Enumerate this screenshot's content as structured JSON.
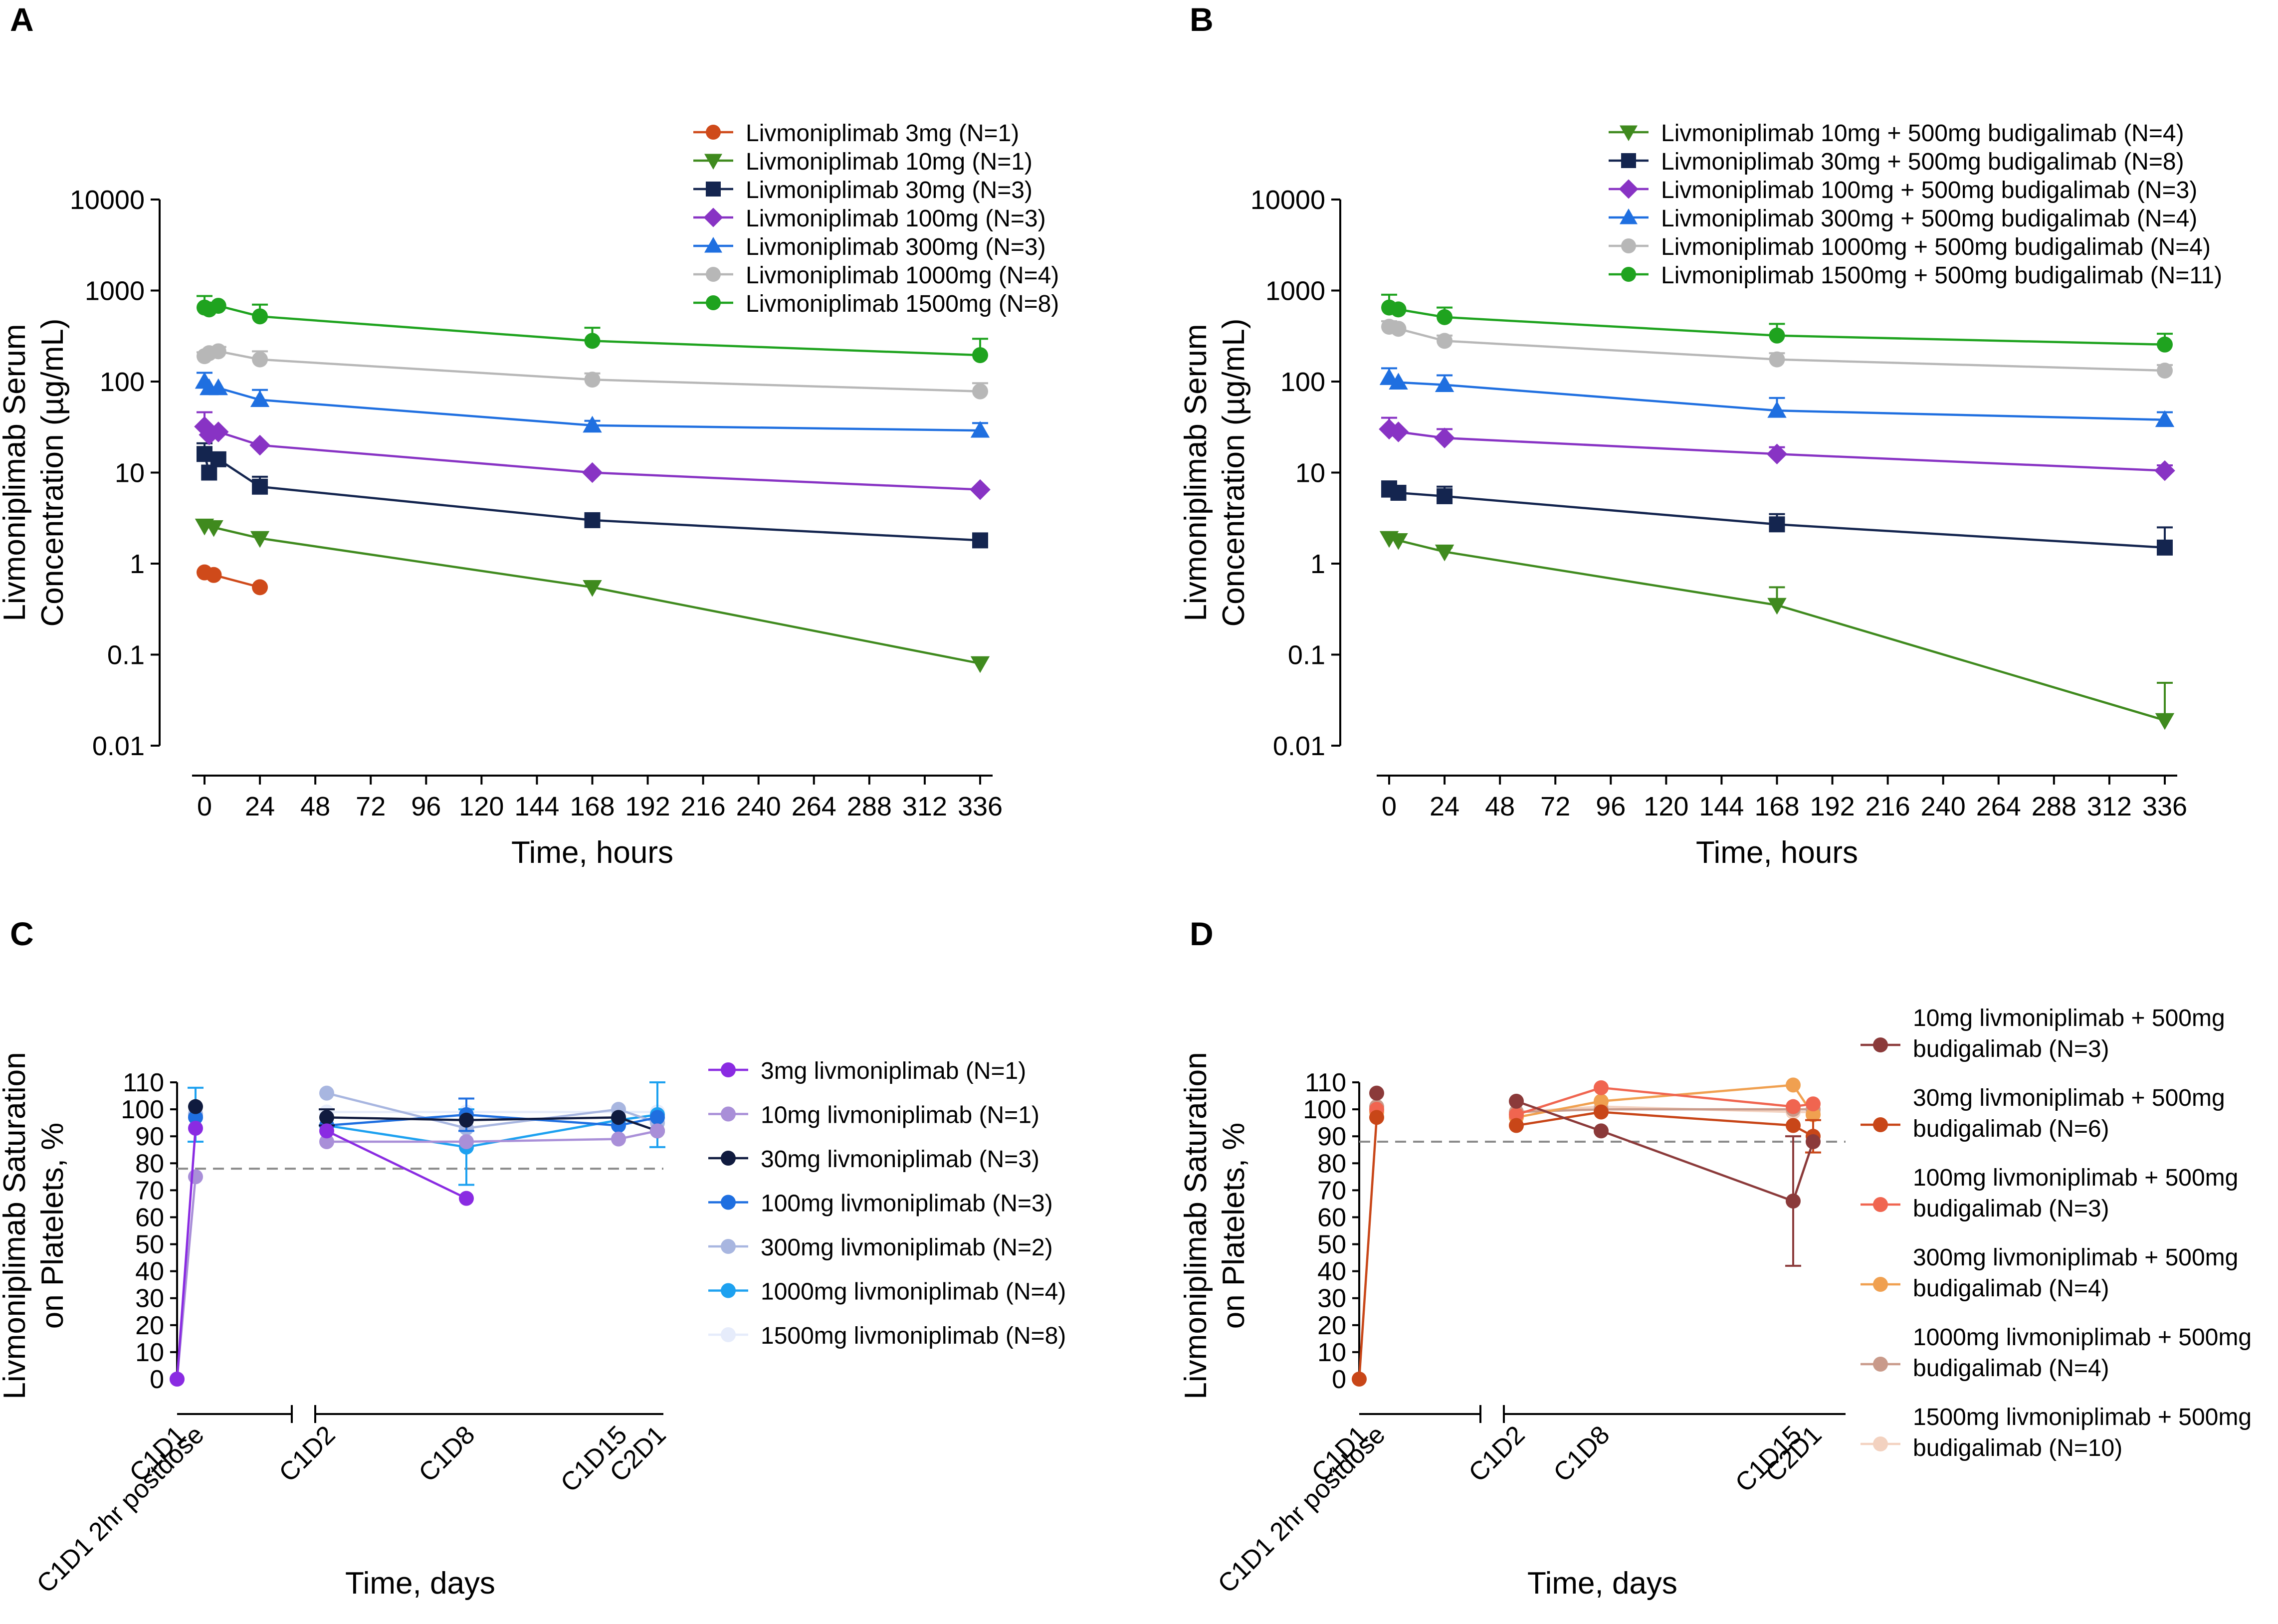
{
  "chart_data": [
    {
      "panel": "A",
      "type": "line",
      "yscale": "log",
      "ylabel": [
        "Livmoniplimab Serum",
        "Concentration (µg/mL)"
      ],
      "xlabel": "Time, hours",
      "xticks": [
        0,
        24,
        48,
        72,
        96,
        120,
        144,
        168,
        192,
        216,
        240,
        264,
        288,
        312,
        336
      ],
      "yticks": [
        0.01,
        0.1,
        1,
        10,
        100,
        1000,
        10000
      ],
      "ytick_labels": [
        "0.01",
        "0.1",
        "1",
        "10",
        "100",
        "1000",
        "10000"
      ],
      "ylim": [
        0.01,
        10000
      ],
      "xlim": [
        0,
        336
      ],
      "series": [
        {
          "name": "Livmoniplimab 3mg (N=1)",
          "color": "#cf4a1a",
          "marker": "circle",
          "x": [
            0,
            4,
            24
          ],
          "y": [
            0.8,
            0.75,
            0.55
          ],
          "err": [
            0,
            0,
            0
          ]
        },
        {
          "name": "Livmoniplimab 10mg (N=1)",
          "color": "#3f8a1e",
          "marker": "triangle-down",
          "x": [
            0,
            4,
            24,
            168,
            336
          ],
          "y": [
            2.6,
            2.5,
            1.9,
            0.55,
            0.08
          ],
          "err": [
            0,
            0,
            0,
            0,
            0
          ]
        },
        {
          "name": "Livmoniplimab 30mg (N=3)",
          "color": "#14254f",
          "marker": "square",
          "x": [
            0,
            2,
            6,
            24,
            168,
            336
          ],
          "y": [
            16,
            10,
            14,
            7,
            3,
            1.8
          ],
          "err": [
            5,
            0,
            0,
            2,
            0.5,
            0
          ]
        },
        {
          "name": "Livmoniplimab 100mg (N=3)",
          "color": "#8833c4",
          "marker": "diamond",
          "x": [
            0,
            2,
            6,
            24,
            168,
            336
          ],
          "y": [
            32,
            26,
            28,
            20,
            10,
            6.5
          ],
          "err": [
            14,
            0,
            0,
            0,
            0,
            0
          ]
        },
        {
          "name": "Livmoniplimab 300mg (N=3)",
          "color": "#1f6fe0",
          "marker": "triangle-up",
          "x": [
            0,
            2,
            6,
            24,
            168,
            336
          ],
          "y": [
            100,
            85,
            85,
            63,
            33,
            29
          ],
          "err": [
            25,
            0,
            0,
            18,
            4,
            6
          ]
        },
        {
          "name": "Livmoniplimab 1000mg (N=4)",
          "color": "#b7b7b7",
          "marker": "circle",
          "x": [
            0,
            2,
            6,
            24,
            168,
            336
          ],
          "y": [
            190,
            205,
            215,
            175,
            105,
            78
          ],
          "err": [
            20,
            0,
            25,
            40,
            18,
            18
          ]
        },
        {
          "name": "Livmoniplimab 1500mg (N=8)",
          "color": "#1fa31f",
          "marker": "circle",
          "x": [
            0,
            2,
            6,
            24,
            168,
            336
          ],
          "y": [
            650,
            620,
            680,
            520,
            280,
            195
          ],
          "err": [
            220,
            0,
            0,
            180,
            110,
            100
          ]
        }
      ]
    },
    {
      "panel": "B",
      "type": "line",
      "yscale": "log",
      "ylabel": [
        "Livmoniplimab Serum",
        "Concentration (µg/mL)"
      ],
      "xlabel": "Time, hours",
      "xticks": [
        0,
        24,
        48,
        72,
        96,
        120,
        144,
        168,
        192,
        216,
        240,
        264,
        288,
        312,
        336
      ],
      "yticks": [
        0.01,
        0.1,
        1,
        10,
        100,
        1000,
        10000
      ],
      "ytick_labels": [
        "0.01",
        "0.1",
        "1",
        "10",
        "100",
        "1000",
        "10000"
      ],
      "ylim": [
        0.01,
        10000
      ],
      "xlim": [
        0,
        336
      ],
      "series": [
        {
          "name": "Livmoniplimab 10mg + 500mg budigalimab (N=4)",
          "color": "#3f8a1e",
          "marker": "triangle-down",
          "x": [
            0,
            4,
            24,
            168,
            336
          ],
          "y": [
            1.9,
            1.8,
            1.35,
            0.35,
            0.019
          ],
          "err": [
            0.3,
            0,
            0.15,
            0.2,
            0.03
          ]
        },
        {
          "name": "Livmoniplimab 30mg + 500mg budigalimab (N=8)",
          "color": "#14254f",
          "marker": "square",
          "x": [
            0,
            4,
            24,
            168,
            336
          ],
          "y": [
            6.5,
            6,
            5.5,
            2.7,
            1.5
          ],
          "err": [
            1.5,
            0,
            1.5,
            0.8,
            1.0
          ]
        },
        {
          "name": "Livmoniplimab 100mg + 500mg budigalimab (N=3)",
          "color": "#8833c4",
          "marker": "diamond",
          "x": [
            0,
            4,
            24,
            168,
            336
          ],
          "y": [
            30,
            28,
            24,
            16,
            10.5
          ],
          "err": [
            10,
            0,
            6,
            3,
            1.5
          ]
        },
        {
          "name": "Livmoniplimab 300mg + 500mg budigalimab (N=4)",
          "color": "#1f6fe0",
          "marker": "triangle-up",
          "x": [
            0,
            4,
            24,
            168,
            336
          ],
          "y": [
            110,
            98,
            92,
            48,
            38
          ],
          "err": [
            30,
            0,
            25,
            18,
            8
          ]
        },
        {
          "name": "Livmoniplimab 1000mg + 500mg budigalimab (N=4)",
          "color": "#b7b7b7",
          "marker": "circle",
          "x": [
            0,
            4,
            24,
            168,
            336
          ],
          "y": [
            400,
            380,
            280,
            175,
            132
          ],
          "err": [
            60,
            0,
            40,
            30,
            20
          ]
        },
        {
          "name": "Livmoniplimab 1500mg + 500mg budigalimab (N=11)",
          "color": "#1fa31f",
          "marker": "circle",
          "x": [
            0,
            4,
            24,
            168,
            336
          ],
          "y": [
            650,
            620,
            510,
            320,
            255
          ],
          "err": [
            250,
            0,
            140,
            110,
            80
          ]
        }
      ]
    },
    {
      "panel": "C",
      "type": "line",
      "ylabel": [
        "Livmoniplimab Saturation",
        "on Platelets, %"
      ],
      "xlabel": "Time, days",
      "categories": [
        "C1D1",
        "C1D1 2hr postdose",
        "C1D2",
        "C1D8",
        "C1D15",
        "C2D1"
      ],
      "yticks": [
        0,
        10,
        20,
        30,
        40,
        50,
        60,
        70,
        80,
        90,
        100,
        110
      ],
      "ylim": [
        0,
        110
      ],
      "reference_line": 78,
      "series": [
        {
          "name": "3mg livmoniplimab (N=1)",
          "color": "#8a2be2",
          "values": [
            0,
            93,
            92,
            67,
            null,
            null
          ],
          "err": [
            0,
            0,
            0,
            0,
            0,
            0
          ]
        },
        {
          "name": "10mg livmoniplimab (N=1)",
          "color": "#a98fd8",
          "values": [
            0,
            75,
            88,
            88,
            89,
            92
          ],
          "err": [
            0,
            0,
            0,
            0,
            0,
            0
          ]
        },
        {
          "name": "30mg livmoniplimab (N=3)",
          "color": "#101b3f",
          "values": [
            null,
            101,
            97,
            96,
            97,
            92
          ],
          "err": [
            0,
            0,
            3,
            0,
            0,
            0
          ]
        },
        {
          "name": "100mg livmoniplimab (N=3)",
          "color": "#1f6fe0",
          "values": [
            null,
            97,
            94,
            98,
            94,
            97
          ],
          "err": [
            0,
            0,
            0,
            6,
            0,
            0
          ]
        },
        {
          "name": "300mg livmoniplimab (N=2)",
          "color": "#a8b6e0",
          "values": [
            null,
            98,
            106,
            93,
            100,
            95
          ],
          "err": [
            0,
            0,
            0,
            0,
            0,
            0
          ]
        },
        {
          "name": "1000mg livmoniplimab (N=4)",
          "color": "#1da1f0",
          "values": [
            null,
            98,
            94,
            86,
            96,
            98
          ],
          "err": [
            0,
            10,
            0,
            14,
            0,
            12
          ]
        },
        {
          "name": "1500mg livmoniplimab (N=8)",
          "color": "#e6ecfb",
          "values": [
            null,
            99,
            99,
            99,
            99,
            99
          ],
          "err": [
            0,
            0,
            0,
            0,
            0,
            0
          ]
        }
      ]
    },
    {
      "panel": "D",
      "type": "line",
      "ylabel": [
        "Livmoniplimab Saturation",
        "on Platelets, %"
      ],
      "xlabel": "Time, days",
      "categories": [
        "C1D1",
        "C1D1 2hr postdose",
        "C1D2",
        "C1D8",
        "C1D15",
        "C2D1"
      ],
      "yticks": [
        0,
        10,
        20,
        30,
        40,
        50,
        60,
        70,
        80,
        90,
        100,
        110
      ],
      "ylim": [
        0,
        110
      ],
      "reference_line": 88,
      "series": [
        {
          "name": "10mg livmoniplimab + 500mg budigalimab (N=3)",
          "color": "#8b3a3a",
          "values": [
            null,
            106,
            103,
            92,
            66,
            88
          ],
          "err": [
            0,
            0,
            0,
            0,
            24,
            0
          ]
        },
        {
          "name": "30mg livmoniplimab + 500mg budigalimab (N=6)",
          "color": "#c84618",
          "values": [
            0,
            97,
            94,
            99,
            94,
            90
          ],
          "err": [
            0,
            0,
            0,
            0,
            0,
            6
          ]
        },
        {
          "name": "100mg livmoniplimab + 500mg budigalimab (N=3)",
          "color": "#f06550",
          "values": [
            null,
            100,
            98,
            108,
            101,
            102
          ],
          "err": [
            0,
            0,
            0,
            0,
            0,
            0
          ]
        },
        {
          "name": "300mg livmoniplimab + 500mg budigalimab (N=4)",
          "color": "#f0a050",
          "values": [
            null,
            99,
            97,
            103,
            109,
            98
          ],
          "err": [
            0,
            0,
            0,
            0,
            0,
            0
          ]
        },
        {
          "name": "1000mg livmoniplimab + 500mg budigalimab (N=4)",
          "color": "#c99a8a",
          "values": [
            null,
            101,
            99,
            100,
            100,
            100
          ],
          "err": [
            0,
            0,
            0,
            0,
            0,
            0
          ]
        },
        {
          "name": "1500mg livmoniplimab + 500mg budigalimab (N=10)",
          "color": "#f3d2c0",
          "values": [
            null,
            100,
            99,
            101,
            99,
            99
          ],
          "err": [
            0,
            0,
            0,
            0,
            0,
            0
          ]
        }
      ]
    }
  ],
  "legends": {
    "A": [
      "Livmoniplimab 3mg (N=1)",
      "Livmoniplimab 10mg (N=1)",
      "Livmoniplimab 30mg (N=3)",
      "Livmoniplimab 100mg (N=3)",
      "Livmoniplimab 300mg (N=3)",
      "Livmoniplimab 1000mg (N=4)",
      "Livmoniplimab 1500mg (N=8)"
    ],
    "B": [
      "Livmoniplimab 10mg + 500mg budigalimab (N=4)",
      "Livmoniplimab 30mg + 500mg budigalimab (N=8)",
      "Livmoniplimab 100mg + 500mg budigalimab (N=3)",
      "Livmoniplimab 300mg + 500mg budigalimab (N=4)",
      "Livmoniplimab 1000mg + 500mg budigalimab (N=4)",
      "Livmoniplimab 1500mg + 500mg budigalimab (N=11)"
    ],
    "C": [
      "3mg livmoniplimab (N=1)",
      "10mg livmoniplimab (N=1)",
      "30mg livmoniplimab (N=3)",
      "100mg livmoniplimab (N=3)",
      "300mg livmoniplimab (N=2)",
      "1000mg livmoniplimab (N=4)",
      "1500mg livmoniplimab (N=8)"
    ],
    "D": [
      [
        "10mg livmoniplimab + 500mg",
        "budigalimab (N=3)"
      ],
      [
        "30mg livmoniplimab + 500mg",
        "budigalimab (N=6)"
      ],
      [
        "100mg livmoniplimab + 500mg",
        "budigalimab (N=3)"
      ],
      [
        "300mg livmoniplimab + 500mg",
        "budigalimab (N=4)"
      ],
      [
        "1000mg livmoniplimab + 500mg",
        "budigalimab (N=4)"
      ],
      [
        "1500mg livmoniplimab + 500mg",
        "budigalimab (N=10)"
      ]
    ]
  }
}
